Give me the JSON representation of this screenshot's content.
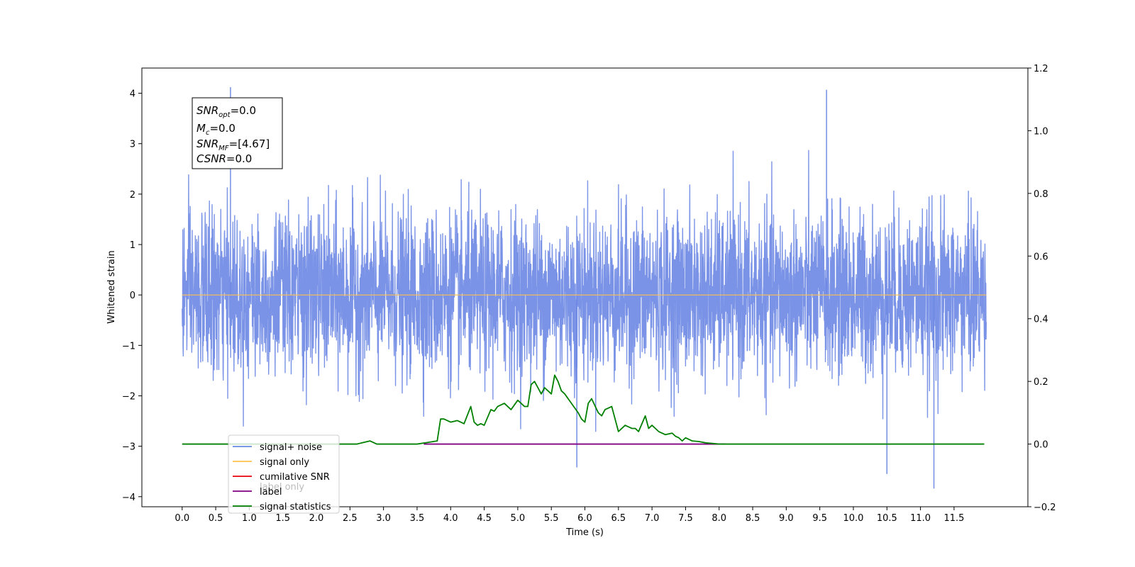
{
  "chart_data": {
    "type": "line",
    "xlabel": "Time (s)",
    "ylabel": "Whitened strain",
    "xlim": [
      -0.6,
      12.6
    ],
    "ylim": [
      -4.2,
      4.5
    ],
    "y2lim": [
      -0.2,
      1.2
    ],
    "x_ticks": [
      "0.0",
      "0.5",
      "1.0",
      "1.5",
      "2.0",
      "2.5",
      "3.0",
      "3.5",
      "4.0",
      "4.5",
      "5.0",
      "5.5",
      "6.0",
      "6.5",
      "7.0",
      "7.5",
      "8.0",
      "8.5",
      "9.0",
      "9.5",
      "10.0",
      "10.5",
      "11.0",
      "11.5"
    ],
    "y_ticks": [
      "4",
      "3",
      "2",
      "1",
      "0",
      "−1",
      "−2",
      "−3",
      "−4"
    ],
    "y2_ticks": [
      "1.2",
      "1.0",
      "0.8",
      "0.6",
      "0.4",
      "0.2",
      "0.0",
      "−0.2"
    ],
    "annotation": {
      "snr_opt": "=0.0",
      "mc": "=0.0",
      "snr_mf": "=[4.67]",
      "csnr": "=0.0"
    },
    "legend": {
      "position": "lower-left",
      "entries": [
        {
          "name": "signal+ noise",
          "color": "#6b87e3"
        },
        {
          "name": "signal only",
          "color": "#ffc04d"
        },
        {
          "name": "cumilative SNR",
          "color": "#e8000b"
        },
        {
          "name": "label",
          "color": "#800080"
        },
        {
          "name": "signal statistics",
          "color": "#008000"
        }
      ],
      "hidden_label": "label only"
    },
    "series": [
      {
        "name": "signal+ noise",
        "axis": "left",
        "x_range": [
          0,
          11.98
        ],
        "std": 0.8,
        "peak_max": 4.12,
        "peak_min": -3.84
      },
      {
        "name": "signal only",
        "axis": "left",
        "x": [
          0,
          11.98
        ],
        "values": [
          0,
          0
        ]
      },
      {
        "name": "label",
        "axis": "right",
        "x": [
          3.6,
          8.1
        ],
        "values": [
          0.0,
          0.0
        ]
      },
      {
        "name": "signal statistics",
        "axis": "right",
        "x": [
          0.0,
          1.0,
          2.0,
          2.6,
          2.8,
          2.9,
          3.0,
          3.5,
          3.65,
          3.8,
          3.85,
          3.9,
          4.0,
          4.1,
          4.15,
          4.2,
          4.3,
          4.35,
          4.4,
          4.45,
          4.5,
          4.6,
          4.65,
          4.7,
          4.8,
          4.9,
          5.0,
          5.05,
          5.1,
          5.15,
          5.2,
          5.25,
          5.3,
          5.35,
          5.4,
          5.5,
          5.55,
          5.6,
          5.65,
          5.7,
          5.8,
          5.9,
          5.95,
          6.0,
          6.05,
          6.1,
          6.2,
          6.25,
          6.3,
          6.4,
          6.45,
          6.5,
          6.6,
          6.7,
          6.75,
          6.8,
          6.9,
          6.95,
          7.0,
          7.1,
          7.2,
          7.3,
          7.35,
          7.4,
          7.45,
          7.5,
          7.6,
          7.7,
          7.8,
          8.0,
          9.0,
          10.0,
          11.0,
          11.95
        ],
        "values": [
          0.0,
          0.0,
          0.0,
          0.0,
          0.01,
          0.0,
          0.0,
          0.0,
          0.005,
          0.01,
          0.08,
          0.08,
          0.07,
          0.075,
          0.07,
          0.065,
          0.12,
          0.07,
          0.06,
          0.065,
          0.06,
          0.11,
          0.105,
          0.12,
          0.13,
          0.11,
          0.14,
          0.13,
          0.12,
          0.12,
          0.19,
          0.2,
          0.18,
          0.16,
          0.18,
          0.16,
          0.22,
          0.2,
          0.17,
          0.16,
          0.13,
          0.1,
          0.08,
          0.07,
          0.13,
          0.145,
          0.1,
          0.09,
          0.11,
          0.12,
          0.08,
          0.04,
          0.06,
          0.05,
          0.05,
          0.04,
          0.09,
          0.05,
          0.06,
          0.04,
          0.03,
          0.035,
          0.025,
          0.02,
          0.01,
          0.02,
          0.01,
          0.008,
          0.004,
          0.0,
          0.0,
          0.0,
          0.0,
          0.0
        ]
      }
    ]
  }
}
